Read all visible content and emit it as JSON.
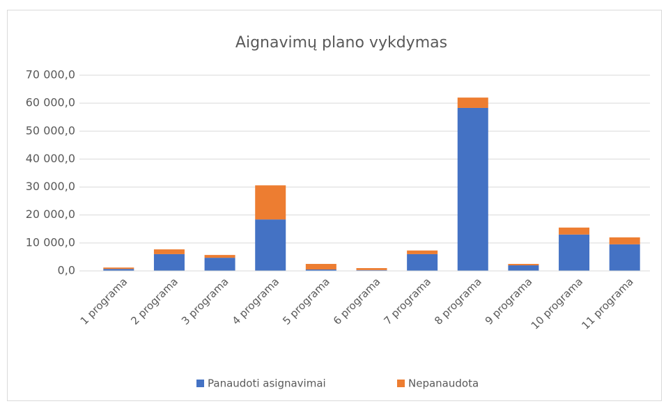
{
  "chart_data": {
    "type": "stacked_bar",
    "title": "Aignavimų plano vykdymas",
    "categories": [
      "1 programa",
      "2 programa",
      "3 programa",
      "4 programa",
      "5 programa",
      "6 programa",
      "7 programa",
      "8 programa",
      "9 programa",
      "10 programa",
      "11 programa"
    ],
    "series": [
      {
        "name": "Panaudoti asignavimai",
        "color": "#4472c4",
        "values": [
          700,
          6000,
          4700,
          18400,
          500,
          300,
          6000,
          58300,
          2000,
          13000,
          9500
        ]
      },
      {
        "name": "Nepanaudota",
        "color": "#ed7d31",
        "values": [
          500,
          1700,
          1000,
          12200,
          2000,
          700,
          1300,
          3700,
          500,
          2500,
          2500
        ]
      }
    ],
    "ylim": [
      0,
      70000
    ],
    "yticks": [
      {
        "value": 0,
        "label": "0,0"
      },
      {
        "value": 10000,
        "label": "10 000,0"
      },
      {
        "value": 20000,
        "label": "20 000,0"
      },
      {
        "value": 30000,
        "label": "30 000,0"
      },
      {
        "value": 40000,
        "label": "40 000,0"
      },
      {
        "value": 50000,
        "label": "50 000,0"
      },
      {
        "value": 60000,
        "label": "60 000,0"
      },
      {
        "value": 70000,
        "label": "70 000,0"
      }
    ],
    "grid": true,
    "legend": "bottom"
  }
}
